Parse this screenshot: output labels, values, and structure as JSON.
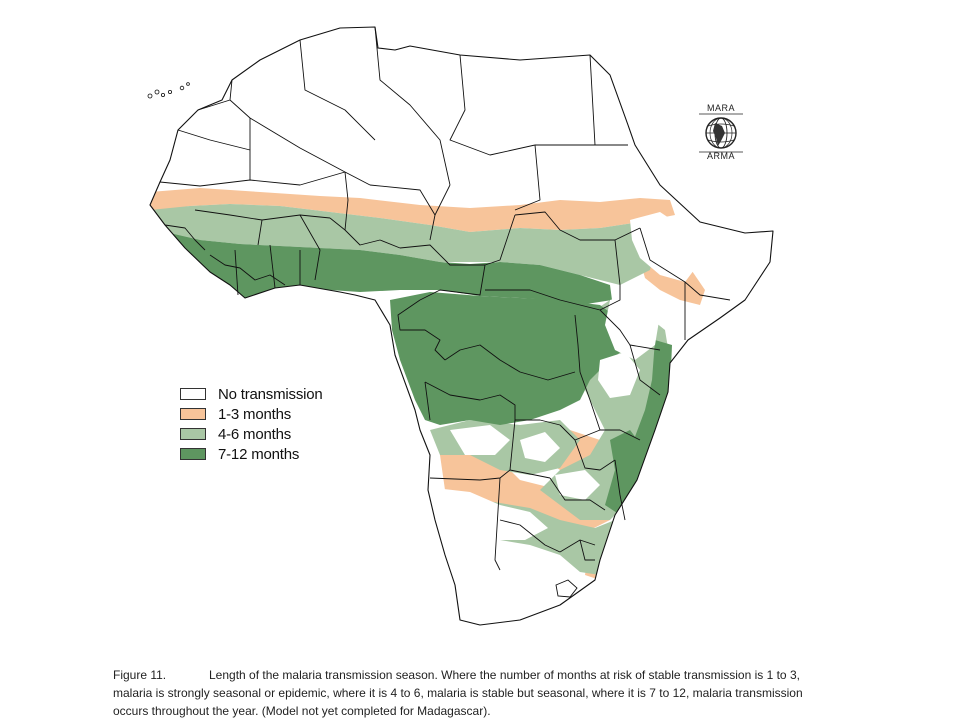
{
  "legend": {
    "items": [
      {
        "label": "No transmission",
        "color": "#ffffff"
      },
      {
        "label": "1-3 months",
        "color": "#f7c49a"
      },
      {
        "label": "4-6 months",
        "color": "#a9c7a5"
      },
      {
        "label": "7-12 months",
        "color": "#5e9660"
      }
    ]
  },
  "logo": {
    "top_text": "MARA",
    "bottom_text": "ARMA"
  },
  "caption": {
    "label": "Figure 11.",
    "text": "Length of the malaria transmission season. Where the number of months at risk of stable transmission is 1 to 3, malaria is strongly seasonal or epidemic, where it is 4 to 6, malaria is stable but seasonal, where it is 7 to 12, malaria transmission occurs throughout the year. (Model not yet completed for Madagascar)."
  }
}
